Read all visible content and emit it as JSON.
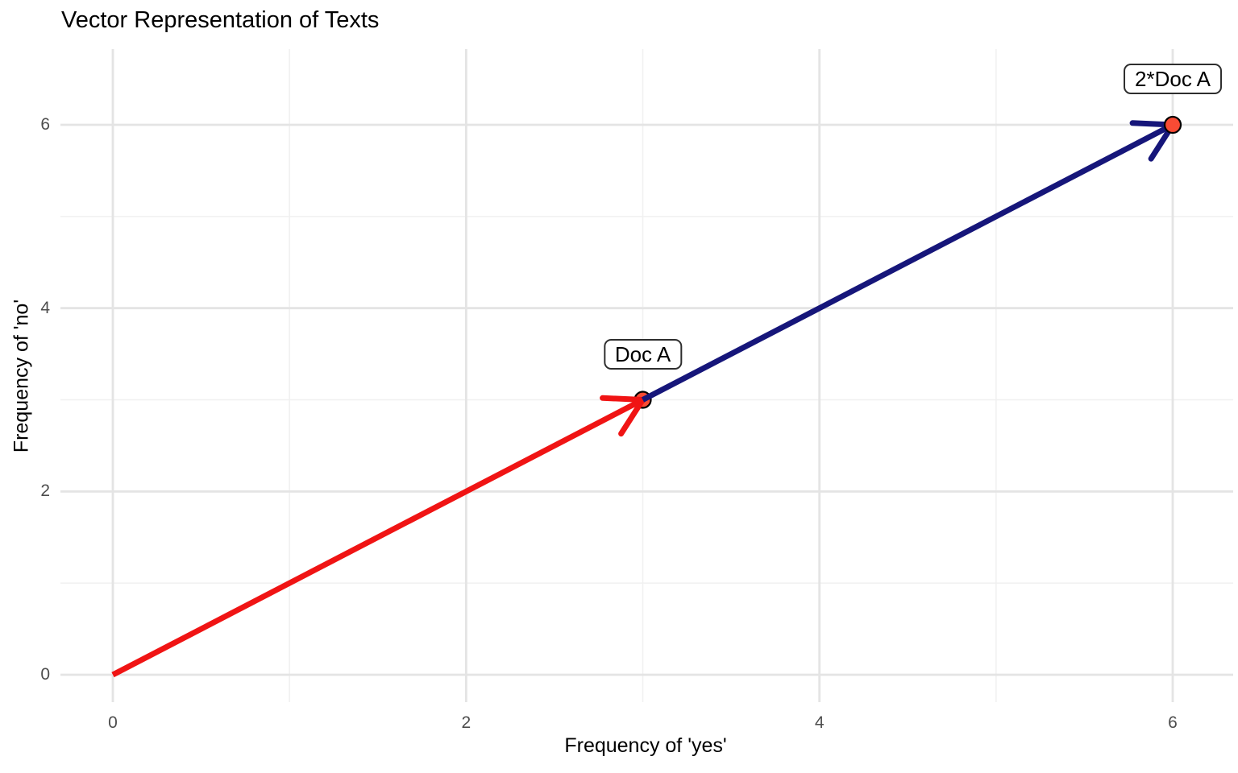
{
  "title": "Vector Representation of Texts",
  "chart_data": {
    "type": "scatter",
    "title": "Vector Representation of Texts",
    "xlabel": "Frequency of 'yes'",
    "ylabel": "Frequency of 'no'",
    "xlim": [
      -0.3,
      6.35
    ],
    "ylim": [
      -0.3,
      6.85
    ],
    "grid": true,
    "legend": false,
    "x_major_ticks": [
      0,
      2,
      4,
      6
    ],
    "x_minor_ticks": [
      1,
      3,
      5
    ],
    "y_major_ticks": [
      0,
      2,
      4,
      6
    ],
    "y_minor_ticks": [
      1,
      3,
      5
    ],
    "colors": {
      "background": "#ffffff",
      "grid_major": "#e4e4e4",
      "grid_minor": "#f0f0f0",
      "tick_label": "#4d4d4d",
      "doc_a_arrow": "#f01414",
      "doc_2a_arrow": "#16167a",
      "point_fill": "#f94b34",
      "point_stroke": "#000000"
    },
    "arrows": [
      {
        "name": "doc-a-vector",
        "from": [
          0,
          0
        ],
        "to": [
          3,
          3
        ],
        "color": "#f01414"
      },
      {
        "name": "doc-2a-vector",
        "from": [
          3,
          3
        ],
        "to": [
          6,
          6
        ],
        "color": "#16167a"
      }
    ],
    "points": [
      {
        "x": 3,
        "y": 3,
        "label": "Doc A"
      },
      {
        "x": 6,
        "y": 6,
        "label": "2*Doc A"
      }
    ]
  }
}
